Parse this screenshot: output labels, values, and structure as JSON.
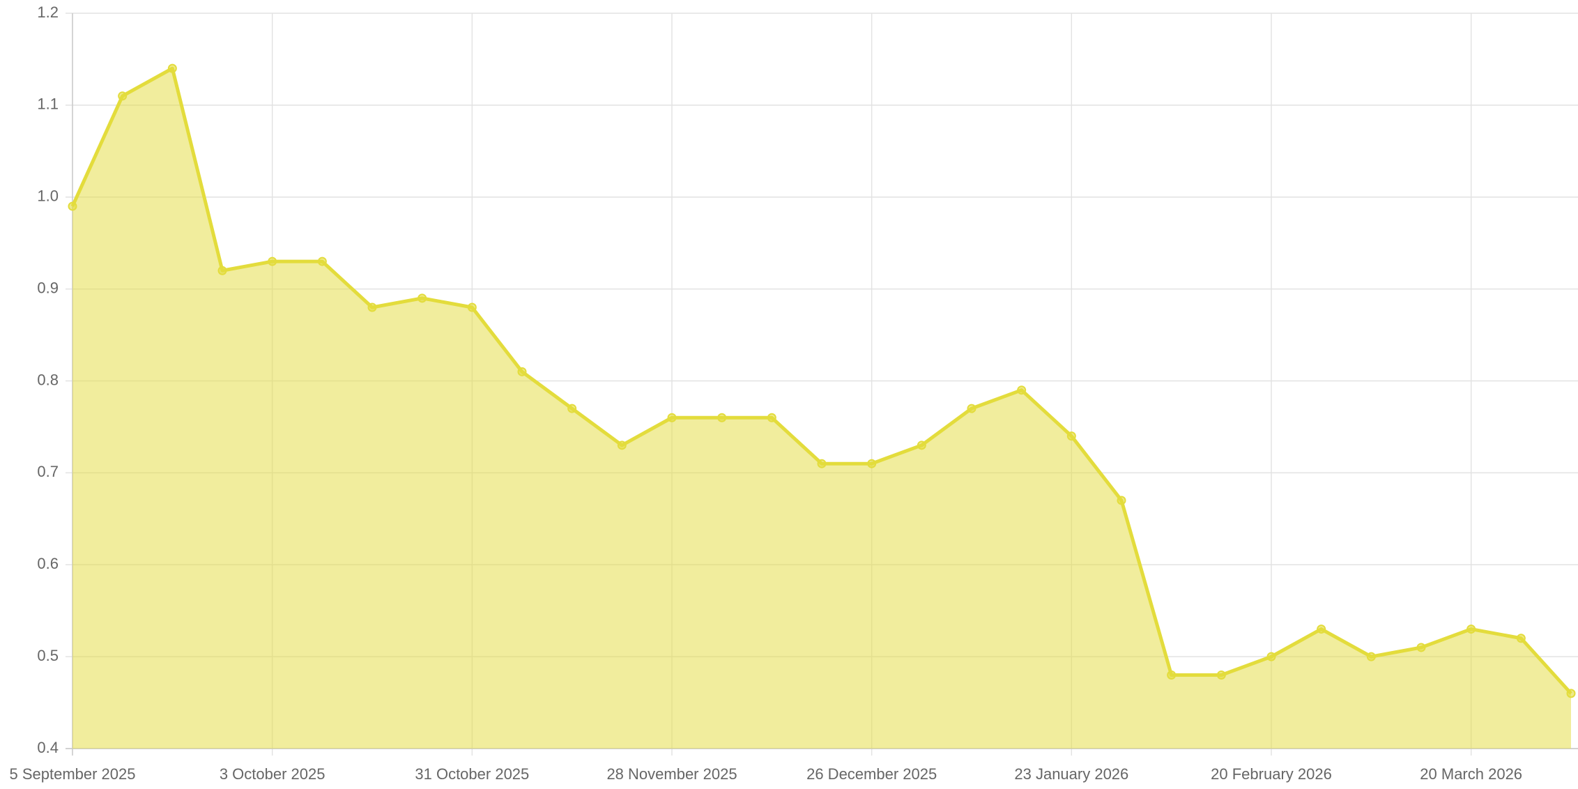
{
  "chart_data": {
    "type": "area",
    "x": [
      "2025-09-05",
      "2025-09-12",
      "2025-09-19",
      "2025-09-26",
      "2025-10-03",
      "2025-10-10",
      "2025-10-17",
      "2025-10-24",
      "2025-10-31",
      "2025-11-07",
      "2025-11-14",
      "2025-11-21",
      "2025-11-28",
      "2025-12-05",
      "2025-12-12",
      "2025-12-19",
      "2025-12-26",
      "2026-01-02",
      "2026-01-09",
      "2026-01-16",
      "2026-01-23",
      "2026-01-30",
      "2026-02-06",
      "2026-02-13",
      "2026-02-20",
      "2026-02-27",
      "2026-03-06",
      "2026-03-13",
      "2026-03-20",
      "2026-03-27",
      "2026-04-03"
    ],
    "values": [
      0.99,
      1.11,
      1.14,
      0.92,
      0.93,
      0.93,
      0.88,
      0.89,
      0.88,
      0.81,
      0.77,
      0.73,
      0.76,
      0.76,
      0.76,
      0.71,
      0.71,
      0.73,
      0.77,
      0.79,
      0.74,
      0.67,
      0.48,
      0.48,
      0.5,
      0.53,
      0.5,
      0.51,
      0.53,
      0.52,
      0.46
    ],
    "color": "#e3dc3c",
    "xlim": [
      "2025-09-05",
      "2026-04-03"
    ],
    "xticks": [
      {
        "value": "2025-09-05",
        "label": "5 September 2025"
      },
      {
        "value": "2025-10-03",
        "label": "3 October 2025"
      },
      {
        "value": "2025-10-31",
        "label": "31 October 2025"
      },
      {
        "value": "2025-11-28",
        "label": "28 November 2025"
      },
      {
        "value": "2025-12-26",
        "label": "26 December 2025"
      },
      {
        "value": "2026-01-23",
        "label": "23 January 2026"
      },
      {
        "value": "2026-02-20",
        "label": "20 February 2026"
      },
      {
        "value": "2026-03-20",
        "label": "20 March 2026"
      }
    ],
    "ylim": [
      0.4,
      1.2
    ],
    "yticks": [
      0.4,
      0.5,
      0.6,
      0.7,
      0.8,
      0.9,
      {
        "value": 1,
        "label": "1.0"
      },
      1.1,
      1.2
    ],
    "grid": true
  }
}
